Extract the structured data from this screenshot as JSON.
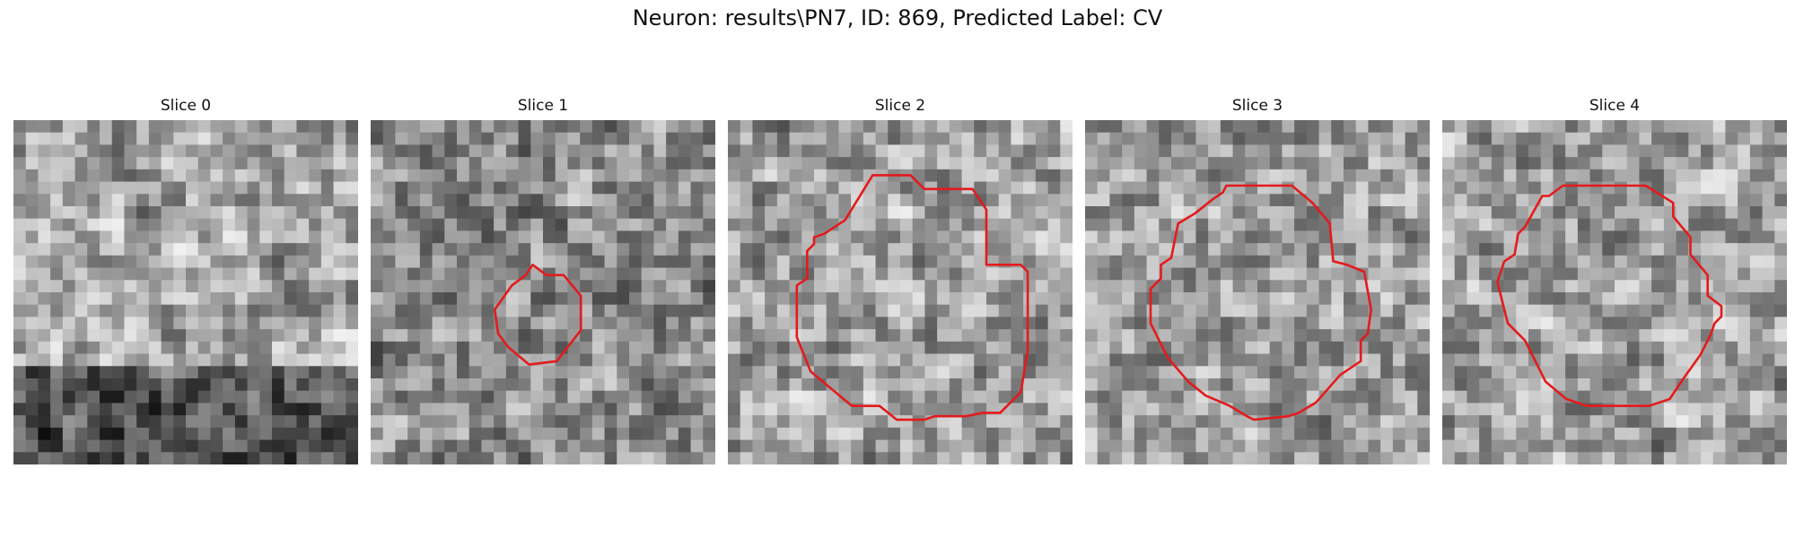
{
  "figure": {
    "title": "Neuron: results\\PN7, ID: 869, Predicted Label: CV"
  },
  "grid_size": 28,
  "outline_color": "#e41a1c",
  "slices": [
    {
      "label": "Slice 0",
      "has_outline": false,
      "outline": [],
      "tone": {
        "seed": 11,
        "base": 165,
        "bands": [
          {
            "y0": 0.72,
            "y1": 1.0,
            "delta": -85
          }
        ]
      }
    },
    {
      "label": "Slice 1",
      "has_outline": true,
      "outline": [
        [
          0.47,
          0.42
        ],
        [
          0.51,
          0.45
        ],
        [
          0.56,
          0.45
        ],
        [
          0.61,
          0.51
        ],
        [
          0.61,
          0.61
        ],
        [
          0.54,
          0.7
        ],
        [
          0.46,
          0.71
        ],
        [
          0.4,
          0.66
        ],
        [
          0.37,
          0.62
        ],
        [
          0.36,
          0.55
        ],
        [
          0.41,
          0.48
        ],
        [
          0.45,
          0.45
        ]
      ],
      "tone": {
        "seed": 23,
        "base": 140,
        "bands": []
      }
    },
    {
      "label": "Slice 2",
      "has_outline": true,
      "outline": [
        [
          0.34,
          0.29
        ],
        [
          0.42,
          0.16
        ],
        [
          0.53,
          0.16
        ],
        [
          0.57,
          0.2
        ],
        [
          0.71,
          0.2
        ],
        [
          0.75,
          0.26
        ],
        [
          0.75,
          0.42
        ],
        [
          0.85,
          0.42
        ],
        [
          0.87,
          0.44
        ],
        [
          0.87,
          0.67
        ],
        [
          0.85,
          0.79
        ],
        [
          0.79,
          0.85
        ],
        [
          0.74,
          0.85
        ],
        [
          0.69,
          0.86
        ],
        [
          0.6,
          0.86
        ],
        [
          0.57,
          0.87
        ],
        [
          0.49,
          0.87
        ],
        [
          0.44,
          0.83
        ],
        [
          0.36,
          0.83
        ],
        [
          0.24,
          0.73
        ],
        [
          0.2,
          0.63
        ],
        [
          0.2,
          0.48
        ],
        [
          0.23,
          0.46
        ],
        [
          0.23,
          0.38
        ],
        [
          0.25,
          0.36
        ],
        [
          0.25,
          0.34
        ],
        [
          0.28,
          0.33
        ]
      ],
      "tone": {
        "seed": 37,
        "base": 160,
        "bands": []
      }
    },
    {
      "label": "Slice 3",
      "has_outline": true,
      "outline": [
        [
          0.32,
          0.27
        ],
        [
          0.37,
          0.23
        ],
        [
          0.4,
          0.21
        ],
        [
          0.41,
          0.19
        ],
        [
          0.6,
          0.19
        ],
        [
          0.66,
          0.24
        ],
        [
          0.71,
          0.3
        ],
        [
          0.72,
          0.41
        ],
        [
          0.76,
          0.42
        ],
        [
          0.81,
          0.44
        ],
        [
          0.83,
          0.55
        ],
        [
          0.82,
          0.62
        ],
        [
          0.8,
          0.64
        ],
        [
          0.8,
          0.7
        ],
        [
          0.74,
          0.74
        ],
        [
          0.67,
          0.82
        ],
        [
          0.62,
          0.85
        ],
        [
          0.59,
          0.86
        ],
        [
          0.49,
          0.87
        ],
        [
          0.47,
          0.86
        ],
        [
          0.42,
          0.83
        ],
        [
          0.35,
          0.8
        ],
        [
          0.3,
          0.76
        ],
        [
          0.24,
          0.69
        ],
        [
          0.19,
          0.59
        ],
        [
          0.19,
          0.49
        ],
        [
          0.22,
          0.46
        ],
        [
          0.22,
          0.42
        ],
        [
          0.25,
          0.4
        ],
        [
          0.27,
          0.3
        ]
      ],
      "tone": {
        "seed": 53,
        "base": 158,
        "bands": []
      }
    },
    {
      "label": "Slice 4",
      "has_outline": true,
      "outline": [
        [
          0.24,
          0.31
        ],
        [
          0.29,
          0.22
        ],
        [
          0.31,
          0.22
        ],
        [
          0.35,
          0.19
        ],
        [
          0.59,
          0.19
        ],
        [
          0.67,
          0.24
        ],
        [
          0.67,
          0.28
        ],
        [
          0.72,
          0.34
        ],
        [
          0.72,
          0.39
        ],
        [
          0.77,
          0.45
        ],
        [
          0.77,
          0.51
        ],
        [
          0.81,
          0.54
        ],
        [
          0.81,
          0.57
        ],
        [
          0.79,
          0.59
        ],
        [
          0.78,
          0.62
        ],
        [
          0.75,
          0.68
        ],
        [
          0.7,
          0.75
        ],
        [
          0.66,
          0.81
        ],
        [
          0.6,
          0.83
        ],
        [
          0.52,
          0.83
        ],
        [
          0.42,
          0.83
        ],
        [
          0.36,
          0.81
        ],
        [
          0.3,
          0.76
        ],
        [
          0.24,
          0.64
        ],
        [
          0.19,
          0.59
        ],
        [
          0.16,
          0.47
        ],
        [
          0.17,
          0.44
        ],
        [
          0.18,
          0.41
        ],
        [
          0.21,
          0.39
        ],
        [
          0.22,
          0.33
        ]
      ],
      "tone": {
        "seed": 71,
        "base": 158,
        "bands": []
      }
    }
  ]
}
